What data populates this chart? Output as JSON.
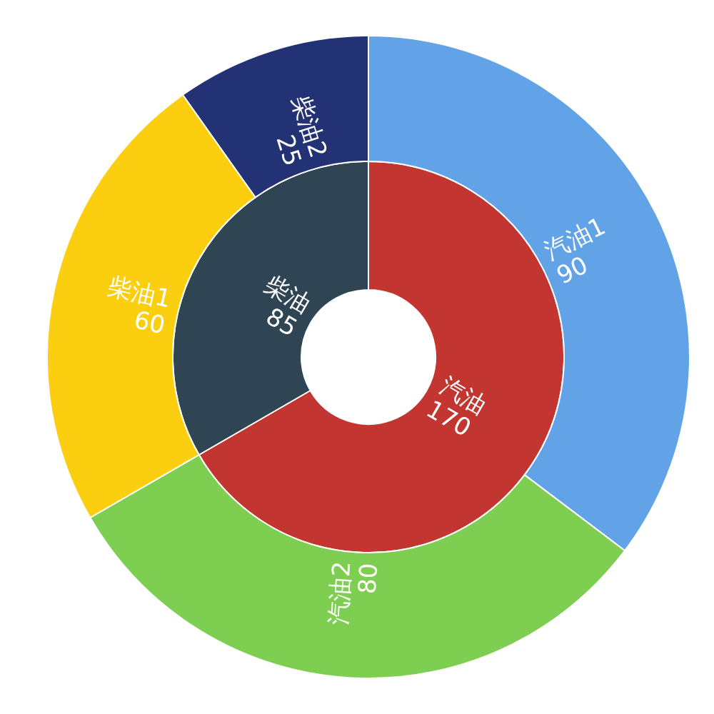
{
  "chart_data": [
    {
      "type": "donut",
      "categories": [
        "汽油",
        "柴油"
      ],
      "values": [
        170,
        85
      ],
      "colors": [
        "#c23531",
        "#2f4554"
      ],
      "data_labels": true
    },
    {
      "type": "donut",
      "categories": [
        "汽油1",
        "汽油2",
        "柴油1",
        "柴油2"
      ],
      "values": [
        90,
        80,
        60,
        25
      ],
      "colors": [
        "#61a3e6",
        "#7ecf51",
        "#fbce10",
        "#233274"
      ],
      "data_labels": true
    }
  ]
}
